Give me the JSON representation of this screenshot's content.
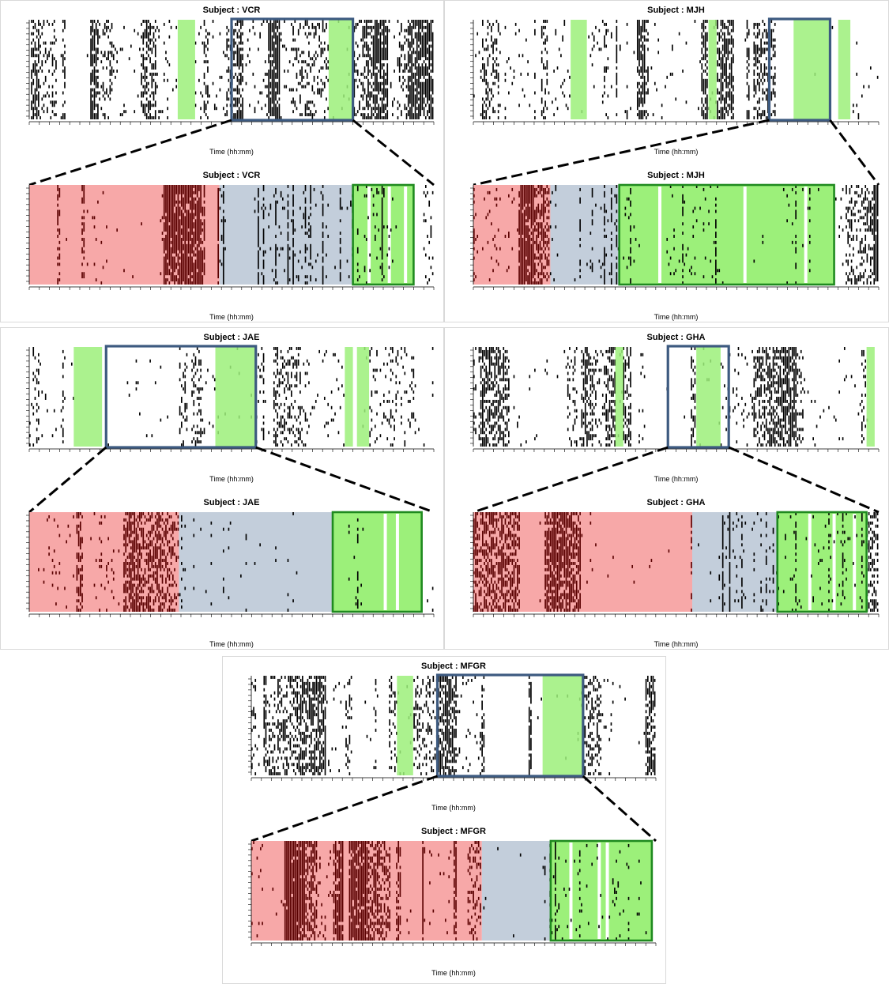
{
  "colors": {
    "raster": "#000000",
    "sleep": "#9cf07a",
    "zoom_box": "#3d5a80",
    "zoom_box_sleep": "#1f8a1f",
    "before_phase": "#f7a8a8",
    "transition_phase": "#c3cedb",
    "raster_in_red": "#5a0000"
  },
  "chart_data": [
    {
      "id": "vcr",
      "type": "heatmap",
      "title": "Subject : VCR",
      "xlabel": "Time (hh:mm)",
      "overview": {
        "sleep_bands": [
          [
            0.367,
            0.41
          ],
          [
            0.74,
            0.8
          ]
        ],
        "zoom": [
          0.5,
          0.8
        ],
        "density": 0.55
      },
      "detail": {
        "title": "Subject : VCR",
        "xlabel": "Time (hh:mm)",
        "before": [
          0.0,
          0.47
        ],
        "transition": [
          0.47,
          0.8
        ],
        "sleep_box": [
          0.8,
          0.95
        ],
        "sleep_gaps": [
          0.84,
          0.89,
          0.93
        ]
      }
    },
    {
      "id": "mjh",
      "type": "heatmap",
      "title": "Subject : MJH",
      "xlabel": "Time (hh:mm)",
      "overview": {
        "sleep_bands": [
          [
            0.24,
            0.28
          ],
          [
            0.58,
            0.6
          ],
          [
            0.79,
            0.88
          ],
          [
            0.9,
            0.93
          ]
        ],
        "zoom": [
          0.73,
          0.88
        ],
        "density": 0.45
      },
      "detail": {
        "title": "Subject : MJH",
        "xlabel": "Time (hh:mm)",
        "before": [
          0.0,
          0.19
        ],
        "transition": [
          0.19,
          0.36
        ],
        "sleep_box": [
          0.36,
          0.89
        ],
        "sleep_gaps": [
          0.46,
          0.67,
          0.82
        ]
      }
    },
    {
      "id": "jae",
      "type": "heatmap",
      "title": "Subject : JAE",
      "xlabel": "Time (hh:mm)",
      "overview": {
        "sleep_bands": [
          [
            0.11,
            0.18
          ],
          [
            0.46,
            0.56
          ],
          [
            0.78,
            0.8
          ],
          [
            0.81,
            0.84
          ]
        ],
        "zoom": [
          0.19,
          0.56
        ],
        "density": 0.3
      },
      "detail": {
        "title": "Subject : JAE",
        "xlabel": "Time (hh:mm)",
        "before": [
          0.0,
          0.37
        ],
        "transition": [
          0.37,
          0.75
        ],
        "sleep_box": [
          0.75,
          0.97
        ],
        "sleep_gaps": [
          0.88,
          0.91
        ]
      }
    },
    {
      "id": "gha",
      "type": "heatmap",
      "title": "Subject : GHA",
      "xlabel": "Time (hh:mm)",
      "overview": {
        "sleep_bands": [
          [
            0.35,
            0.37
          ],
          [
            0.55,
            0.61
          ],
          [
            0.97,
            0.99
          ]
        ],
        "zoom": [
          0.48,
          0.63
        ],
        "density": 0.45
      },
      "detail": {
        "title": "Subject : GHA",
        "xlabel": "Time (hh:mm)",
        "before": [
          0.0,
          0.54
        ],
        "transition": [
          0.54,
          0.75
        ],
        "sleep_box": [
          0.75,
          0.97
        ],
        "sleep_gaps": [
          0.83,
          0.89,
          0.94
        ]
      }
    },
    {
      "id": "mfgr",
      "type": "heatmap",
      "title": "Subject : MFGR",
      "xlabel": "Time (hh:mm)",
      "overview": {
        "sleep_bands": [
          [
            0.36,
            0.4
          ],
          [
            0.72,
            0.82
          ]
        ],
        "zoom": [
          0.46,
          0.82
        ],
        "density": 0.45
      },
      "detail": {
        "title": "Subject : MFGR",
        "xlabel": "Time (hh:mm)",
        "before": [
          0.0,
          0.57
        ],
        "transition": [
          0.57,
          0.74
        ],
        "sleep_box": [
          0.74,
          0.99
        ],
        "sleep_gaps": [
          0.79,
          0.86,
          0.88
        ]
      }
    }
  ]
}
